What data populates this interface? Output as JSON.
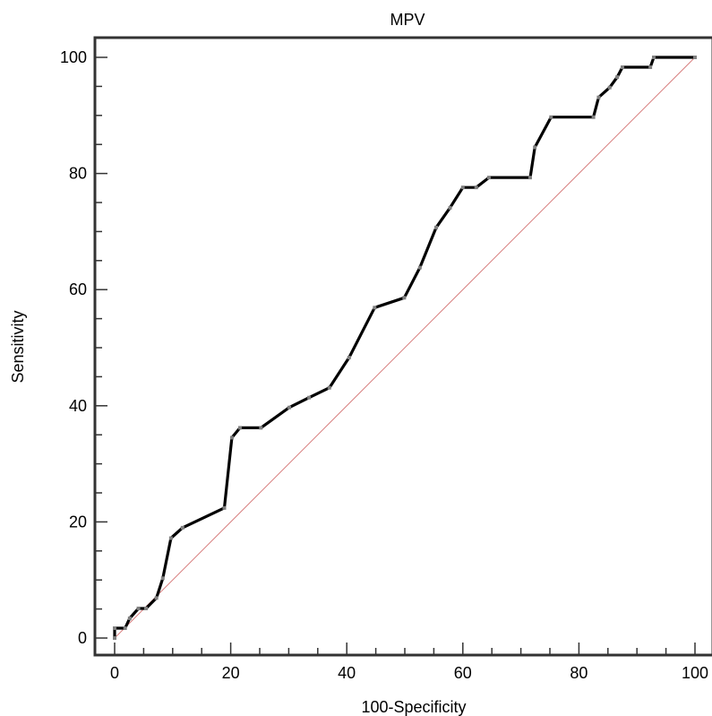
{
  "chart_data": {
    "type": "line",
    "title": "MPV",
    "xlabel": "100-Specificity",
    "ylabel": "Sensitivity",
    "xlim": [
      0,
      100
    ],
    "ylim": [
      0,
      100
    ],
    "x_ticks": [
      0,
      20,
      40,
      60,
      80,
      100
    ],
    "y_ticks": [
      0,
      20,
      40,
      60,
      80,
      100
    ],
    "x_tick_labels": [
      "0",
      "20",
      "40",
      "60",
      "80",
      "100"
    ],
    "y_tick_labels": [
      "0",
      "20",
      "40",
      "60",
      "80",
      "100"
    ],
    "minor_tick_step": 5,
    "grid": false,
    "series": [
      {
        "values_xy": [
          [
            0,
            0
          ],
          [
            0,
            1.7
          ],
          [
            1.8,
            1.7
          ],
          [
            2.6,
            3.4
          ],
          [
            4.1,
            5.1
          ],
          [
            5.4,
            5.1
          ],
          [
            7.2,
            6.9
          ],
          [
            8.3,
            10.3
          ],
          [
            9.7,
            17.2
          ],
          [
            11.7,
            19.0
          ],
          [
            18.9,
            22.4
          ],
          [
            20.2,
            34.5
          ],
          [
            21.6,
            36.2
          ],
          [
            25.2,
            36.2
          ],
          [
            30.1,
            39.7
          ],
          [
            33.5,
            41.4
          ],
          [
            37.0,
            43.1
          ],
          [
            40.4,
            48.3
          ],
          [
            44.8,
            56.9
          ],
          [
            49.9,
            58.6
          ],
          [
            52.6,
            63.8
          ],
          [
            55.4,
            70.7
          ],
          [
            57.8,
            74.1
          ],
          [
            60.0,
            77.6
          ],
          [
            62.3,
            77.6
          ],
          [
            64.5,
            79.3
          ],
          [
            71.6,
            79.3
          ],
          [
            72.4,
            84.5
          ],
          [
            75.2,
            89.7
          ],
          [
            82.5,
            89.7
          ],
          [
            83.4,
            93.1
          ],
          [
            85.3,
            94.8
          ],
          [
            86.6,
            96.6
          ],
          [
            87.5,
            98.3
          ],
          [
            92.3,
            98.3
          ],
          [
            92.9,
            100
          ],
          [
            100,
            100
          ]
        ],
        "color": "#000000"
      },
      {
        "values_xy": [
          [
            0,
            0
          ],
          [
            100,
            100
          ]
        ],
        "color": "#d88080"
      }
    ]
  }
}
